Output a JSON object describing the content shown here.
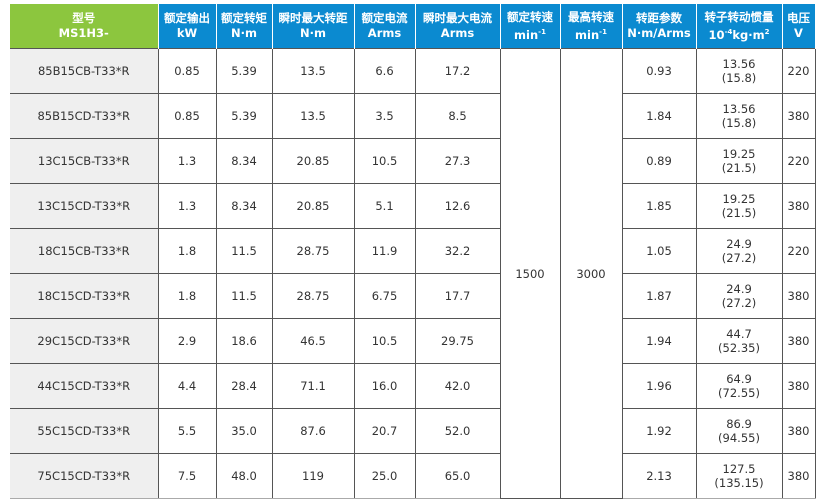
{
  "headers": [
    {
      "l1": "型号",
      "l2": "MS1H3-"
    },
    {
      "l1": "额定输出",
      "l2": "kW"
    },
    {
      "l1": "额定转矩",
      "l2": "N·m"
    },
    {
      "l1": "瞬时最大转距",
      "l2": "N·m"
    },
    {
      "l1": "额定电流",
      "l2": "Arms"
    },
    {
      "l1": "瞬时最大电流",
      "l2": "Arms"
    },
    {
      "l1": "额定转速",
      "l2": "min",
      "sup": "-1"
    },
    {
      "l1": "最高转速",
      "l2": "min",
      "sup": "-1"
    },
    {
      "l1": "转距参数",
      "l2": "N·m/Arms"
    },
    {
      "l1": "转子转动惯量",
      "l2a": "10",
      "sup": "-4",
      "l2": "kg·m",
      "sup2": "2"
    },
    {
      "l1": "电压",
      "l2": "V"
    }
  ],
  "rated_speed": "1500",
  "max_speed": "3000",
  "rows": [
    [
      "85B15CB-T33*R",
      "0.85",
      "5.39",
      "13.5",
      "6.6",
      "17.2",
      "0.93",
      "13.56",
      "(15.8)",
      "220"
    ],
    [
      "85B15CD-T33*R",
      "0.85",
      "5.39",
      "13.5",
      "3.5",
      "8.5",
      "1.84",
      "13.56",
      "(15.8)",
      "380"
    ],
    [
      "13C15CB-T33*R",
      "1.3",
      "8.34",
      "20.85",
      "10.5",
      "27.3",
      "0.89",
      "19.25",
      "(21.5)",
      "220"
    ],
    [
      "13C15CD-T33*R",
      "1.3",
      "8.34",
      "20.85",
      "5.1",
      "12.6",
      "1.85",
      "19.25",
      "(21.5)",
      "380"
    ],
    [
      "18C15CB-T33*R",
      "1.8",
      "11.5",
      "28.75",
      "11.9",
      "32.2",
      "1.05",
      "24.9",
      "(27.2)",
      "220"
    ],
    [
      "18C15CD-T33*R",
      "1.8",
      "11.5",
      "28.75",
      "6.75",
      "17.7",
      "1.87",
      "24.9",
      "(27.2)",
      "380"
    ],
    [
      "29C15CD-T33*R",
      "2.9",
      "18.6",
      "46.5",
      "10.5",
      "29.75",
      "1.94",
      "44.7",
      "(52.35)",
      "380"
    ],
    [
      "44C15CD-T33*R",
      "4.4",
      "28.4",
      "71.1",
      "16.0",
      "42.0",
      "1.96",
      "64.9",
      "(72.55)",
      "380"
    ],
    [
      "55C15CD-T33*R",
      "5.5",
      "35.0",
      "87.6",
      "20.7",
      "52.0",
      "1.92",
      "86.9",
      "(94.55)",
      "380"
    ],
    [
      "75C15CD-T33*R",
      "7.5",
      "48.0",
      "119",
      "25.0",
      "65.0",
      "2.13",
      "127.5",
      "(135.15)",
      "380"
    ]
  ]
}
